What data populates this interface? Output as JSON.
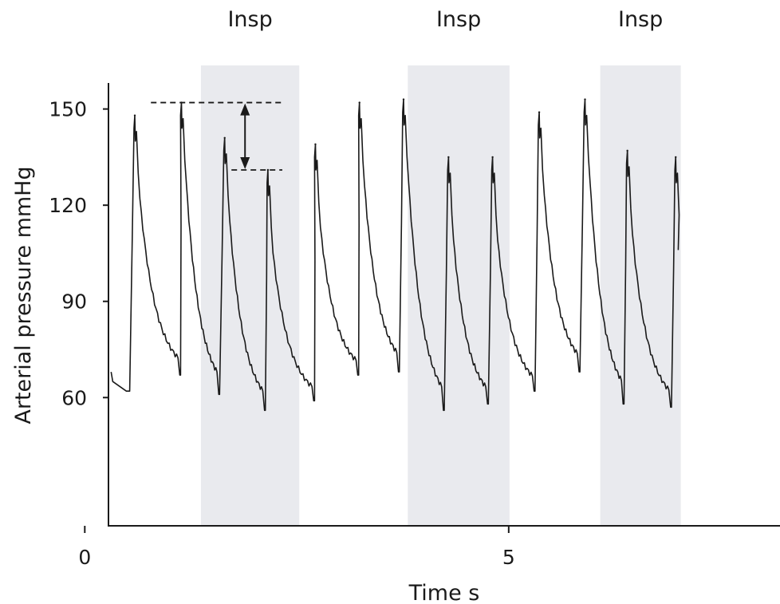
{
  "chart_data": {
    "type": "line",
    "title": "",
    "xlabel": "Time s",
    "ylabel": "Arterial pressure mmHg",
    "xlim": [
      -1.0,
      8.2
    ],
    "ylim": [
      20,
      184
    ],
    "x_ticks": [
      0,
      5
    ],
    "x_tick_labels": [
      "0",
      "5"
    ],
    "y_ticks": [
      60,
      90,
      120,
      150
    ],
    "y_tick_labels": [
      "60",
      "90",
      "120",
      "150"
    ],
    "grid": false,
    "inspiration_bands": [
      {
        "label": "Insp",
        "x_start": 1.37,
        "x_end": 2.53
      },
      {
        "label": "Insp",
        "x_start": 3.81,
        "x_end": 5.01
      },
      {
        "label": "Insp",
        "x_start": 6.08,
        "x_end": 7.03
      }
    ],
    "beats": [
      {
        "t_up": 0.53,
        "t_peak": 0.59,
        "v_start": 62,
        "peak": 148,
        "v_end": 67,
        "t_end": 1.13
      },
      {
        "t_up": 1.13,
        "t_peak": 1.14,
        "v_start": 67,
        "peak": 152,
        "v_end": 61,
        "t_end": 1.59
      },
      {
        "t_up": 1.59,
        "t_peak": 1.65,
        "v_start": 61,
        "peak": 141,
        "v_end": 56,
        "t_end": 2.13
      },
      {
        "t_up": 2.13,
        "t_peak": 2.16,
        "v_start": 56,
        "peak": 131,
        "v_end": 59,
        "t_end": 2.71
      },
      {
        "t_up": 2.71,
        "t_peak": 2.72,
        "v_start": 59,
        "peak": 139,
        "v_end": 67,
        "t_end": 3.23
      },
      {
        "t_up": 3.23,
        "t_peak": 3.24,
        "v_start": 67,
        "peak": 152,
        "v_end": 68,
        "t_end": 3.71
      },
      {
        "t_up": 3.71,
        "t_peak": 3.76,
        "v_start": 68,
        "peak": 153,
        "v_end": 56,
        "t_end": 4.24
      },
      {
        "t_up": 4.24,
        "t_peak": 4.29,
        "v_start": 56,
        "peak": 135,
        "v_end": 58,
        "t_end": 4.76
      },
      {
        "t_up": 4.76,
        "t_peak": 4.81,
        "v_start": 58,
        "peak": 135,
        "v_end": 62,
        "t_end": 5.31
      },
      {
        "t_up": 5.31,
        "t_peak": 5.36,
        "v_start": 62,
        "peak": 149,
        "v_end": 68,
        "t_end": 5.84
      },
      {
        "t_up": 5.84,
        "t_peak": 5.9,
        "v_start": 68,
        "peak": 153,
        "v_end": 58,
        "t_end": 6.36
      },
      {
        "t_up": 6.36,
        "t_peak": 6.4,
        "v_start": 58,
        "peak": 137,
        "v_end": 57,
        "t_end": 6.92
      },
      {
        "t_up": 6.92,
        "t_peak": 6.97,
        "v_start": 57,
        "peak": 135,
        "v_end": 106,
        "t_end": 7.0
      }
    ],
    "start_point": {
      "t": 0.31,
      "v": 68
    },
    "annotation": {
      "type": "double-arrow",
      "upper_line": {
        "y": 152,
        "x_start": 0.78,
        "x_end": 2.33
      },
      "lower_line": {
        "y": 131,
        "x_start": 1.73,
        "x_end": 2.33
      },
      "arrow_x": 1.89
    },
    "colors": {
      "trace": "#1a1a1a",
      "band": "#e9eaee",
      "axis": "#1a1a1a"
    }
  }
}
